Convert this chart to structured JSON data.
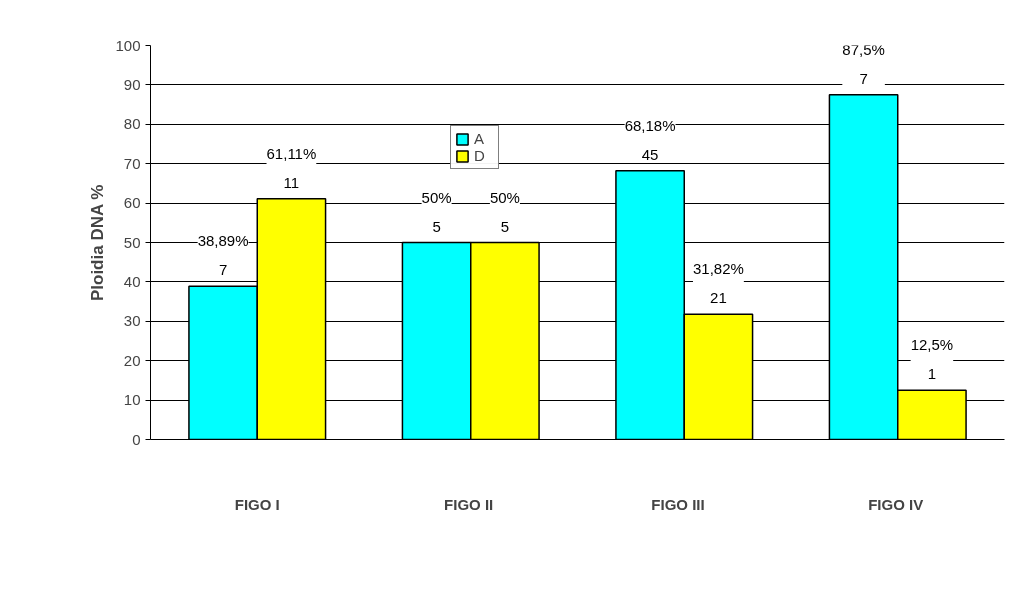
{
  "chart_data": {
    "type": "bar",
    "ylabel": "Ploidia DNA %",
    "categories": [
      "FIGO I",
      "FIGO  II",
      "FIGO    III",
      "FIGO  IV"
    ],
    "series": [
      {
        "name": "A",
        "color": "#00ffff",
        "values": [
          38.89,
          50,
          68.18,
          87.5
        ],
        "value_labels": [
          "38,89%\n7",
          "50%\n5",
          "68,18%\n45",
          "87,5%\n7"
        ]
      },
      {
        "name": "D",
        "color": "#ffff00",
        "values": [
          61.11,
          50,
          31.82,
          12.5
        ],
        "value_labels": [
          "61,11%\n11",
          "50%\n5",
          "31,82%\n21",
          "12,5%\n1"
        ]
      }
    ],
    "ylim": [
      0,
      100
    ],
    "yticks": [
      0,
      10,
      20,
      30,
      40,
      50,
      60,
      70,
      80,
      90,
      100
    ],
    "grid": "y",
    "legend": "top"
  }
}
